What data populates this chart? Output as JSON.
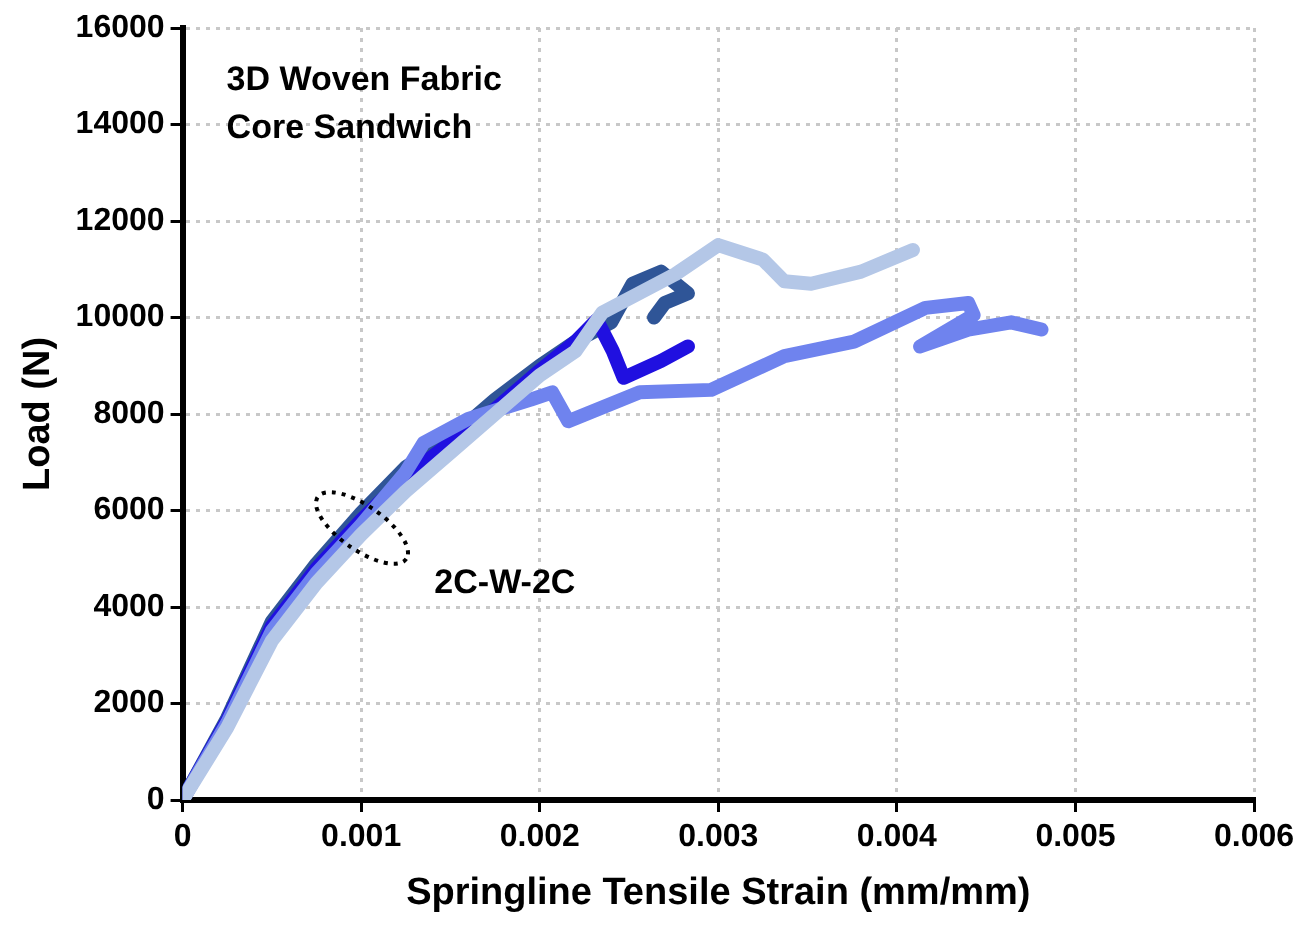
{
  "chart_data": {
    "type": "line",
    "title": "3D Woven Fabric\nCore Sandwich",
    "xlabel": "Springline Tensile Strain (mm/mm)",
    "ylabel": "Load (N)",
    "annotations": [
      "2C-W-2C"
    ],
    "xlim": [
      0,
      0.006
    ],
    "xticks": [
      0,
      0.001,
      0.002,
      0.003,
      0.004,
      0.005,
      0.006
    ],
    "ylim": [
      0,
      16000
    ],
    "yticks": [
      0,
      2000,
      4000,
      6000,
      8000,
      10000,
      12000,
      14000,
      16000
    ],
    "grid": true,
    "legend": false,
    "marker": "none",
    "line_style": "solid",
    "series": [
      {
        "color": "#b4c7e7",
        "x": [
          0,
          0.00025,
          0.0005,
          0.00075,
          0.001,
          0.00125,
          0.0015,
          0.00175,
          0.002,
          0.0022,
          0.00235,
          0.00276,
          0.003,
          0.00325,
          0.00337,
          0.00352,
          0.0038,
          0.00409
        ],
        "values": [
          0,
          1500,
          3300,
          4500,
          5500,
          6400,
          7200,
          8000,
          8800,
          9300,
          10100,
          10900,
          11500,
          11200,
          10750,
          10700,
          10950,
          11400
        ]
      },
      {
        "color": "#6f83ee",
        "x": [
          0,
          0.00025,
          0.0005,
          0.00075,
          0.001,
          0.00125,
          0.00135,
          0.0016,
          0.00195,
          0.00207,
          0.00216,
          0.00256,
          0.00296,
          0.00337,
          0.00376,
          0.00416,
          0.0044,
          0.00443,
          0.00413,
          0.0044,
          0.00464,
          0.00481
        ],
        "values": [
          0,
          1600,
          3500,
          4700,
          5700,
          6800,
          7400,
          7900,
          8300,
          8450,
          7850,
          8450,
          8500,
          9200,
          9500,
          10200,
          10300,
          10050,
          9400,
          9750,
          9900,
          9750
        ]
      },
      {
        "color": "#2010e0",
        "x": [
          0,
          0.00025,
          0.0005,
          0.00075,
          0.001,
          0.00125,
          0.0015,
          0.00175,
          0.002,
          0.0022,
          0.00232,
          0.00241,
          0.00247,
          0.00268,
          0.00283
        ],
        "values": [
          0,
          1650,
          3600,
          4800,
          5800,
          6700,
          7400,
          8100,
          8900,
          9500,
          9950,
          9300,
          8750,
          9100,
          9400
        ]
      },
      {
        "color": "#2f5597",
        "x": [
          0,
          0.00025,
          0.0005,
          0.00075,
          0.001,
          0.00125,
          0.0015,
          0.00175,
          0.002,
          0.0022,
          0.0024,
          0.00252,
          0.00268,
          0.00283,
          0.0027,
          0.00264
        ],
        "values": [
          0,
          1700,
          3700,
          4900,
          5950,
          6900,
          7500,
          8300,
          9000,
          9500,
          9900,
          10700,
          10950,
          10500,
          10300,
          10000
        ]
      }
    ]
  }
}
